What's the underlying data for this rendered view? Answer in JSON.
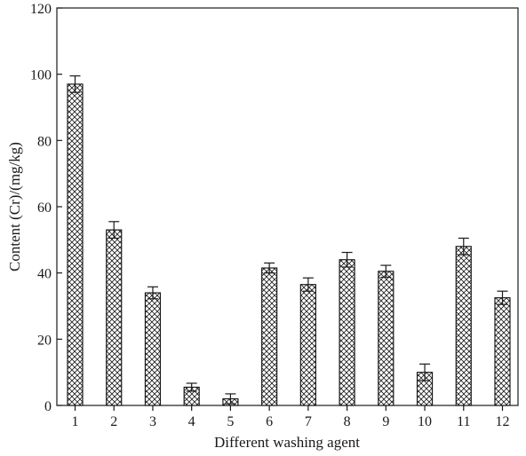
{
  "chart_data": {
    "type": "bar",
    "title": "",
    "xlabel": "Different washing agent",
    "ylabel": "Content (Cr)/(mg/kg)",
    "categories": [
      "1",
      "2",
      "3",
      "4",
      "5",
      "6",
      "7",
      "8",
      "9",
      "10",
      "11",
      "12"
    ],
    "values": [
      97,
      53,
      34,
      5.5,
      2,
      41.5,
      36.5,
      44,
      40.5,
      10,
      48,
      32.5
    ],
    "errors": [
      2.5,
      2.5,
      1.8,
      1.2,
      1.5,
      1.5,
      2.0,
      2.2,
      1.8,
      2.5,
      2.5,
      2.0
    ],
    "ylim": [
      0,
      120
    ],
    "yticks": [
      0,
      20,
      40,
      60,
      80,
      100,
      120
    ],
    "grid": false,
    "legend": "none",
    "bar_pattern": "crosshatch",
    "bar_color": "#1a1a1a"
  }
}
